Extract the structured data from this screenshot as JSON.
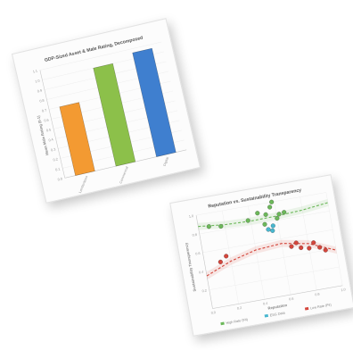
{
  "chart_data": [
    {
      "type": "bar",
      "title": "GDP-Sized Asset & Male Rating, Decomposed",
      "xlabel": "",
      "ylabel": "Mean Male Rating (0-1)",
      "categories": [
        "Landscapes",
        "Commercial",
        "Digital"
      ],
      "values": [
        0.7,
        1.0,
        1.06
      ],
      "colors": [
        "#f39a32",
        "#8cc04a",
        "#3f7fcf"
      ],
      "ylim": [
        0,
        1.1
      ],
      "yticks": [
        "0.0",
        "0.1",
        "0.2",
        "0.3",
        "0.4",
        "0.5",
        "0.6",
        "0.7",
        "0.8",
        "0.9",
        "1.0",
        "1.1"
      ],
      "grid": true
    },
    {
      "type": "scatter",
      "title": "Reputation vs. Sustainability Transparency",
      "xlabel": "Reputation",
      "ylabel": "Sustainability Transparency",
      "xlim": [
        0.0,
        1.0
      ],
      "ylim": [
        0.0,
        1.0
      ],
      "xticks": [
        "0.0",
        "0.2",
        "0.4",
        "0.6",
        "0.8",
        "1.0"
      ],
      "yticks": [
        "0.2",
        "0.4",
        "0.6",
        "0.8",
        "1.0"
      ],
      "grid": true,
      "legend_position": "bottom",
      "series": [
        {
          "name": "High Rate (Fit)",
          "color": "#6cb85a",
          "points": [
            [
              0.08,
              0.86
            ],
            [
              0.17,
              0.84
            ],
            [
              0.38,
              0.85
            ],
            [
              0.46,
              0.91
            ],
            [
              0.52,
              0.88
            ],
            [
              0.56,
              0.95
            ],
            [
              0.58,
              1.0
            ],
            [
              0.6,
              0.82
            ],
            [
              0.62,
              0.86
            ],
            [
              0.66,
              0.87
            ],
            [
              0.5,
              0.78
            ]
          ],
          "trend": [
            [
              0.0,
              0.88
            ],
            [
              0.2,
              0.85
            ],
            [
              0.4,
              0.84
            ],
            [
              0.6,
              0.845
            ],
            [
              0.8,
              0.86
            ],
            [
              1.0,
              0.89
            ]
          ]
        },
        {
          "name": "ESG Data",
          "color": "#48b7cf",
          "points": [
            [
              0.52,
              0.72
            ],
            [
              0.55,
              0.7
            ],
            [
              0.56,
              0.75
            ]
          ]
        },
        {
          "name": "Low Rate (Fit)",
          "color": "#d4463c",
          "points": [
            [
              0.12,
              0.47
            ],
            [
              0.17,
              0.52
            ],
            [
              0.67,
              0.5
            ],
            [
              0.74,
              0.47
            ],
            [
              0.8,
              0.45
            ],
            [
              0.84,
              0.5
            ],
            [
              0.88,
              0.44
            ],
            [
              0.92,
              0.4
            ],
            [
              0.71,
              0.53
            ]
          ],
          "trend": [
            [
              0.0,
              0.35
            ],
            [
              0.2,
              0.46
            ],
            [
              0.4,
              0.53
            ],
            [
              0.6,
              0.55
            ],
            [
              0.8,
              0.5
            ],
            [
              1.0,
              0.38
            ]
          ]
        }
      ]
    }
  ]
}
